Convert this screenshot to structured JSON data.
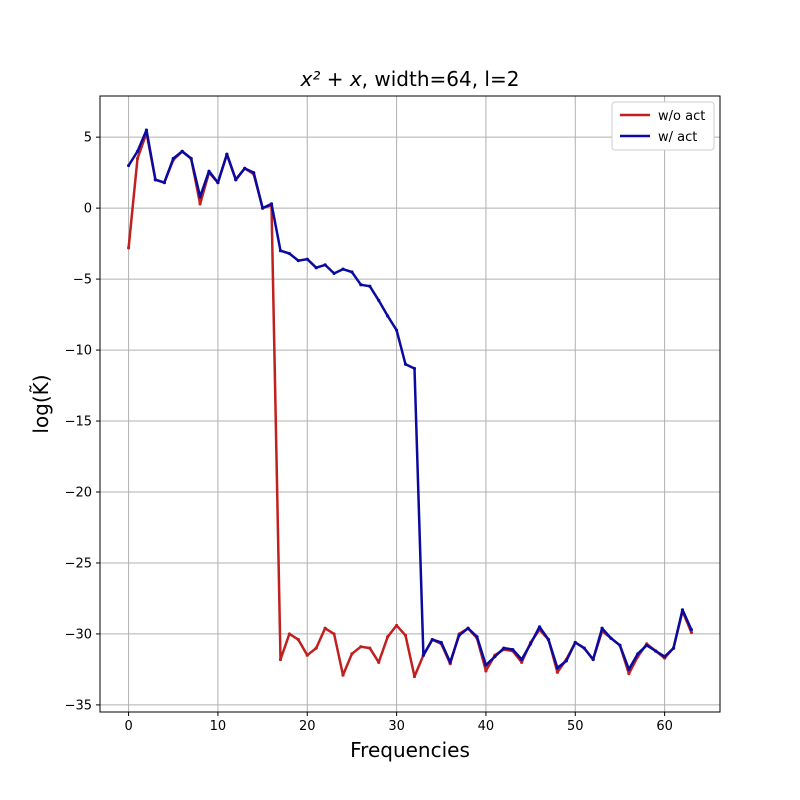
{
  "chart_data": {
    "type": "line",
    "title_main": "x² + x",
    "title_rest": ", width=64, l=2",
    "xlabel": "Frequencies",
    "ylabel": "log(K̃)",
    "xlim": [
      -3.2,
      66.2
    ],
    "ylim": [
      -35.5,
      7.9
    ],
    "xticks": [
      0,
      10,
      20,
      30,
      40,
      50,
      60
    ],
    "yticks": [
      5,
      0,
      -5,
      -10,
      -15,
      -20,
      -25,
      -30,
      -35
    ],
    "grid": true,
    "legend_position": "top-right",
    "x": [
      0,
      1,
      2,
      3,
      4,
      5,
      6,
      7,
      8,
      9,
      10,
      11,
      12,
      13,
      14,
      15,
      16,
      17,
      18,
      19,
      20,
      21,
      22,
      23,
      24,
      25,
      26,
      27,
      28,
      29,
      30,
      31,
      32,
      33,
      34,
      35,
      36,
      37,
      38,
      39,
      40,
      41,
      42,
      43,
      44,
      45,
      46,
      47,
      48,
      49,
      50,
      51,
      52,
      53,
      54,
      55,
      56,
      57,
      58,
      59,
      60,
      61,
      62,
      63
    ],
    "series": [
      {
        "name": "w/o act",
        "color": "#c0201e",
        "values": [
          -2.8,
          3.5,
          5.3,
          2.0,
          1.8,
          3.4,
          4.0,
          3.5,
          0.3,
          2.5,
          1.8,
          3.8,
          2.0,
          2.8,
          2.4,
          0.0,
          0.2,
          -31.8,
          -30.0,
          -30.4,
          -31.5,
          -31.0,
          -29.6,
          -30.0,
          -32.9,
          -31.4,
          -30.9,
          -31.0,
          -32.0,
          -30.2,
          -29.4,
          -30.1,
          -33.0,
          -31.5,
          -30.4,
          -30.7,
          -32.1,
          -30.0,
          -29.6,
          -30.3,
          -32.6,
          -31.5,
          -31.1,
          -31.2,
          -32.0,
          -30.6,
          -29.7,
          -30.4,
          -32.7,
          -31.8,
          -30.6,
          -31.0,
          -31.8,
          -29.8,
          -30.3,
          -30.8,
          -32.8,
          -31.6,
          -30.7,
          -31.2,
          -31.7,
          -31.0,
          -28.4,
          -29.9
        ]
      },
      {
        "name": "w/ act",
        "color": "#0a0aa0",
        "values": [
          3.0,
          4.0,
          5.5,
          2.0,
          1.8,
          3.5,
          4.0,
          3.5,
          0.8,
          2.6,
          1.8,
          3.8,
          2.0,
          2.8,
          2.5,
          0.0,
          0.3,
          -3.0,
          -3.2,
          -3.7,
          -3.6,
          -4.2,
          -4.0,
          -4.6,
          -4.3,
          -4.5,
          -5.4,
          -5.5,
          -6.5,
          -7.6,
          -8.6,
          -11.0,
          -11.3,
          -31.5,
          -30.4,
          -30.6,
          -32.0,
          -30.1,
          -29.6,
          -30.2,
          -32.2,
          -31.6,
          -31.0,
          -31.1,
          -31.8,
          -30.7,
          -29.5,
          -30.4,
          -32.4,
          -31.9,
          -30.6,
          -31.0,
          -31.8,
          -29.6,
          -30.3,
          -30.8,
          -32.5,
          -31.4,
          -30.8,
          -31.2,
          -31.6,
          -31.0,
          -28.3,
          -29.7
        ]
      }
    ]
  }
}
